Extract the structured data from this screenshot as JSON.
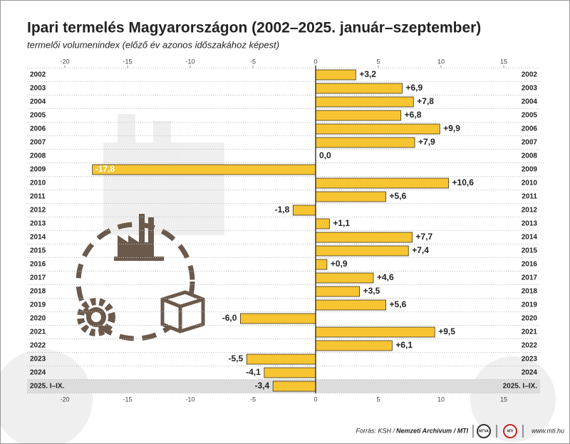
{
  "chart_data": {
    "type": "bar",
    "orientation": "horizontal",
    "title": "Ipari termelés Magyarországon (2002–2025. január–szeptember)",
    "subtitle": "termelői volumenindex (előző év azonos időszakához képest)",
    "categories": [
      "2002",
      "2003",
      "2004",
      "2005",
      "2006",
      "2007",
      "2008",
      "2009",
      "2010",
      "2011",
      "2012",
      "2013",
      "2014",
      "2015",
      "2016",
      "2017",
      "2018",
      "2019",
      "2020",
      "2021",
      "2022",
      "2023",
      "2024",
      "2025. I–IX."
    ],
    "values": [
      3.2,
      6.9,
      7.8,
      6.8,
      9.9,
      7.9,
      0.0,
      -17.8,
      10.6,
      5.6,
      -1.8,
      1.1,
      7.7,
      7.4,
      0.9,
      4.6,
      3.5,
      5.6,
      -6.0,
      9.5,
      6.1,
      -5.5,
      -4.1,
      -3.4
    ],
    "value_labels": [
      "+3,2",
      "+6,9",
      "+7,8",
      "+6,8",
      "+9,9",
      "+7,9",
      "0,0",
      "-17,8",
      "+10,6",
      "+5,6",
      "-1,8",
      "+1,1",
      "+7,7",
      "+7,4",
      "+0,9",
      "+4,6",
      "+3,5",
      "+5,6",
      "-6,0",
      "+9,5",
      "+6,1",
      "-5,5",
      "-4,1",
      "-3,4"
    ],
    "color": "#f7c531",
    "xlim": [
      -20,
      15
    ],
    "xticks": [
      -20,
      -15,
      -10,
      -5,
      0,
      5,
      10,
      15
    ]
  },
  "footer": {
    "source": "Forrás: KSH /",
    "source_bold": "Nemzeti Archívum / MTI",
    "logos": [
      "MTVA",
      "MTI"
    ],
    "url": "www.mti.hu"
  }
}
